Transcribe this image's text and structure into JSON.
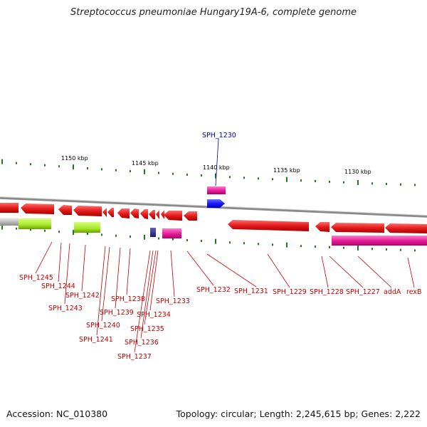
{
  "title": "Streptococcus pneumoniae Hungary19A-6, complete genome",
  "footer": {
    "accession": "Accession: NC_010380",
    "summary": "Topology: circular; Length: 2,245,615 bp; Genes: 2,222"
  },
  "scale_labels": [
    "1150 kbp",
    "1145 kbp",
    "1140 kbp",
    "1135 kbp",
    "1130 kbp"
  ],
  "genes": [
    {
      "name": "SPH_1245"
    },
    {
      "name": "SPH_1244"
    },
    {
      "name": "SPH_1243"
    },
    {
      "name": "SPH_1242"
    },
    {
      "name": "SPH_1241"
    },
    {
      "name": "SPH_1240"
    },
    {
      "name": "SPH_1239"
    },
    {
      "name": "SPH_1238"
    },
    {
      "name": "SPH_1237"
    },
    {
      "name": "SPH_1236"
    },
    {
      "name": "SPH_1235"
    },
    {
      "name": "SPH_1234"
    },
    {
      "name": "SPH_1233"
    },
    {
      "name": "SPH_1232"
    },
    {
      "name": "SPH_1231"
    },
    {
      "name": "SPH_1229"
    },
    {
      "name": "SPH_1228"
    },
    {
      "name": "SPH_1227"
    },
    {
      "name": "addA"
    },
    {
      "name": "rexB"
    }
  ],
  "top_gene": {
    "name": "SPH_1230"
  },
  "colors": {
    "gene_red": "#e41b1b",
    "gene_blue": "#1a1aff",
    "magenta": "#e8219a",
    "lime": "#a8e82a",
    "gray_band": "#bdbdbd",
    "navy": "#2b2b8c",
    "tick_green": "#1f7a1f",
    "label_red": "#c00000",
    "label_blue": "#000099"
  }
}
